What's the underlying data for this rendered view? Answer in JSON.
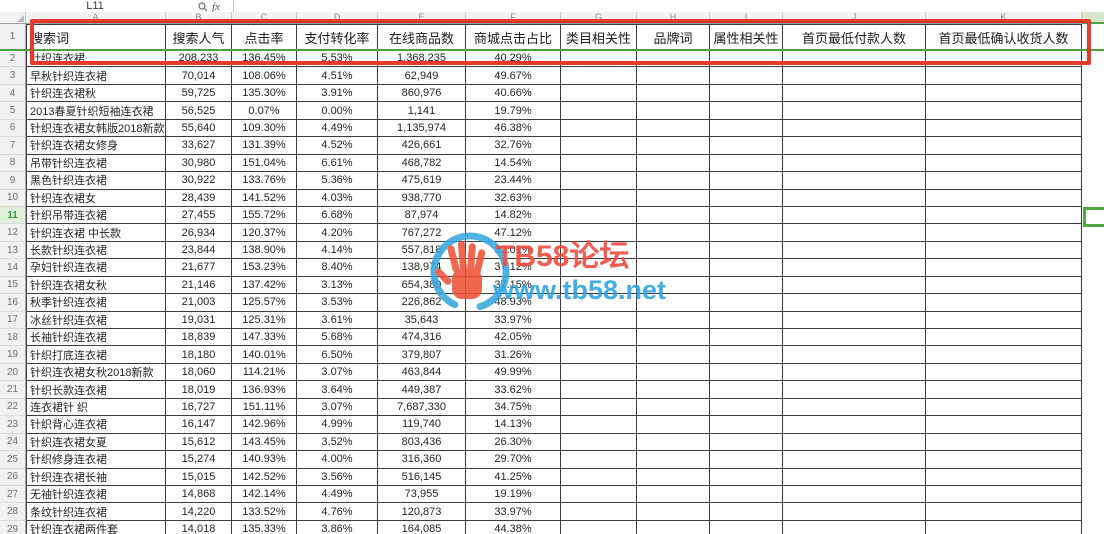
{
  "name_box": "L11",
  "fx_label": "fx",
  "header_row_num": "1",
  "selected_row": "11",
  "columns": [
    "A",
    "B",
    "C",
    "D",
    "E",
    "F",
    "G",
    "H",
    "I",
    "J",
    "K"
  ],
  "header_row": [
    "搜索词",
    "搜索人气",
    "点击率",
    "支付转化率",
    "在线商品数",
    "商城点击占比",
    "类目相关性",
    "品牌词",
    "属性相关性",
    "首页最低付款人数",
    "首页最低确认收货人数"
  ],
  "rows": [
    [
      "2",
      "针织连衣裙",
      "208,233",
      "136.45%",
      "5.53%",
      "1,368,235",
      "40.29%"
    ],
    [
      "3",
      "早秋针织连衣裙",
      "70,014",
      "108.06%",
      "4.51%",
      "62,949",
      "49.67%"
    ],
    [
      "4",
      "针织连衣裙秋",
      "59,725",
      "135.30%",
      "3.91%",
      "860,976",
      "40.66%"
    ],
    [
      "5",
      "2013春夏针织短袖连衣裙",
      "56,525",
      "0.07%",
      "0.00%",
      "1,141",
      "19.79%"
    ],
    [
      "6",
      "针织连衣裙女韩版2018新款",
      "55,640",
      "109.30%",
      "4.49%",
      "1,135,974",
      "46.38%"
    ],
    [
      "7",
      "针织连衣裙女修身",
      "33,627",
      "131.39%",
      "4.52%",
      "426,661",
      "32.76%"
    ],
    [
      "8",
      "吊带针织连衣裙",
      "30,980",
      "151.04%",
      "6.61%",
      "468,782",
      "14.54%"
    ],
    [
      "9",
      "黑色针织连衣裙",
      "30,922",
      "133.76%",
      "5.36%",
      "475,619",
      "23.44%"
    ],
    [
      "10",
      "针织连衣裙女",
      "28,439",
      "141.52%",
      "4.03%",
      "938,770",
      "32.63%"
    ],
    [
      "11",
      "针织吊带连衣裙",
      "27,455",
      "155.72%",
      "6.68%",
      "87,974",
      "14.82%"
    ],
    [
      "12",
      "针织连衣裙 中长款",
      "26,934",
      "120.37%",
      "4.20%",
      "767,272",
      "47.12%"
    ],
    [
      "13",
      "长款针织连衣裙",
      "23,844",
      "138.90%",
      "4.14%",
      "557,818",
      "32.01%"
    ],
    [
      "14",
      "孕妇针织连衣裙",
      "21,677",
      "153.23%",
      "8.40%",
      "138,974",
      "37.12%"
    ],
    [
      "15",
      "针织连衣裙女秋",
      "21,146",
      "137.42%",
      "3.13%",
      "654,380",
      "37.15%"
    ],
    [
      "16",
      "秋季针织连衣裙",
      "21,003",
      "125.57%",
      "3.53%",
      "226,862",
      "48.93%"
    ],
    [
      "17",
      "冰丝针织连衣裙",
      "19,031",
      "125.31%",
      "3.61%",
      "35,643",
      "33.97%"
    ],
    [
      "18",
      "长袖针织连衣裙",
      "18,839",
      "147.33%",
      "5.68%",
      "474,316",
      "42.05%"
    ],
    [
      "19",
      "针织打底连衣裙",
      "18,180",
      "140.01%",
      "6.50%",
      "379,807",
      "31.26%"
    ],
    [
      "20",
      "针织连衣裙女秋2018新款",
      "18,060",
      "114.21%",
      "3.07%",
      "463,844",
      "49.99%"
    ],
    [
      "21",
      "针织长款连衣裙",
      "18,019",
      "136.93%",
      "3.64%",
      "449,387",
      "33.62%"
    ],
    [
      "22",
      "连衣裙针 织",
      "16,727",
      "151.11%",
      "3.07%",
      "7,687,330",
      "34.75%"
    ],
    [
      "23",
      "针织背心连衣裙",
      "16,147",
      "142.96%",
      "4.99%",
      "119,740",
      "14.13%"
    ],
    [
      "24",
      "针织连衣裙女夏",
      "15,612",
      "143.45%",
      "3.52%",
      "803,436",
      "26.30%"
    ],
    [
      "25",
      "针织修身连衣裙",
      "15,274",
      "140.93%",
      "4.00%",
      "316,360",
      "29.70%"
    ],
    [
      "26",
      "针织连衣裙长袖",
      "15,015",
      "142.52%",
      "3.56%",
      "516,145",
      "41.25%"
    ],
    [
      "27",
      "无袖针织连衣裙",
      "14,868",
      "142.14%",
      "4.49%",
      "73,955",
      "19.19%"
    ],
    [
      "28",
      "条纹针织连衣裙",
      "14,220",
      "133.52%",
      "4.76%",
      "120,873",
      "33.97%"
    ],
    [
      "29",
      "针织连衣裙两件套",
      "14,018",
      "135.33%",
      "3.86%",
      "164,085",
      "44.38%"
    ]
  ],
  "watermark": {
    "title": "TB58论坛",
    "url": "www.tb58.net",
    "red": "#f1473a",
    "blue": "#2aa2e8",
    "hand": "#ef5136"
  }
}
